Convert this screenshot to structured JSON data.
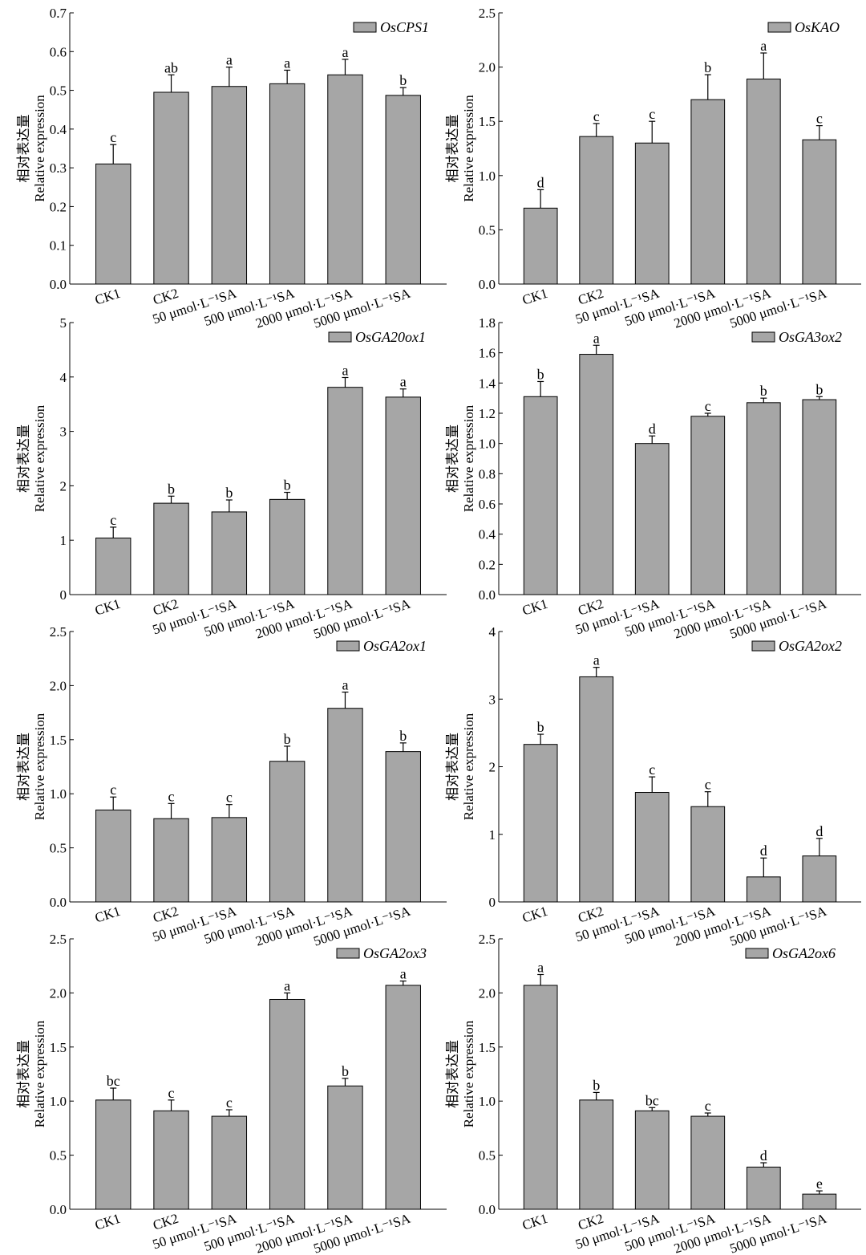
{
  "figure": {
    "categories": [
      "CK1",
      "CK2",
      "50 μmol·L⁻¹SA",
      "500 μmol·L⁻¹SA",
      "2000 μmol·L⁻¹SA",
      "5000 μmol·L⁻¹SA"
    ],
    "ylabel_cn": "相对表达量",
    "ylabel_en": "Relative expression",
    "bar_color": "#a6a6a6",
    "edge_color": "#000000"
  },
  "chart_data": [
    {
      "type": "bar",
      "legend": "OsCPS1",
      "categories": [
        "CK1",
        "CK2",
        "50 μmol·L⁻¹SA",
        "500 μmol·L⁻¹SA",
        "2000 μmol·L⁻¹SA",
        "5000 μmol·L⁻¹SA"
      ],
      "values": [
        0.31,
        0.495,
        0.51,
        0.517,
        0.54,
        0.487
      ],
      "errors": [
        0.05,
        0.045,
        0.05,
        0.035,
        0.04,
        0.02
      ],
      "sig_letters": [
        "c",
        "ab",
        "a",
        "a",
        "a",
        "b"
      ],
      "ylim": [
        0,
        0.7
      ],
      "yticks": [
        "0.0",
        "0.1",
        "0.2",
        "0.3",
        "0.4",
        "0.5",
        "0.6",
        "0.7"
      ],
      "ylabel": "相对表达量 Relative expression"
    },
    {
      "type": "bar",
      "legend": "OsKAO",
      "categories": [
        "CK1",
        "CK2",
        "50 μmol·L⁻¹SA",
        "500 μmol·L⁻¹SA",
        "2000 μmol·L⁻¹SA",
        "5000 μmol·L⁻¹SA"
      ],
      "values": [
        0.7,
        1.36,
        1.3,
        1.7,
        1.89,
        1.33
      ],
      "errors": [
        0.17,
        0.12,
        0.2,
        0.23,
        0.24,
        0.13
      ],
      "sig_letters": [
        "d",
        "c",
        "c",
        "b",
        "a",
        "c"
      ],
      "ylim": [
        0,
        2.5
      ],
      "yticks": [
        "0.0",
        "0.5",
        "1.0",
        "1.5",
        "2.0",
        "2.5"
      ],
      "ylabel": "相对表达量 Relative expression"
    },
    {
      "type": "bar",
      "legend": "OsGA20ox1",
      "categories": [
        "CK1",
        "CK2",
        "50 μmol·L⁻¹SA",
        "500 μmol·L⁻¹SA",
        "2000 μmol·L⁻¹SA",
        "5000 μmol·L⁻¹SA"
      ],
      "values": [
        1.04,
        1.68,
        1.52,
        1.75,
        3.81,
        3.63
      ],
      "errors": [
        0.2,
        0.13,
        0.22,
        0.13,
        0.18,
        0.15
      ],
      "sig_letters": [
        "c",
        "b",
        "b",
        "b",
        "a",
        "a"
      ],
      "ylim": [
        0,
        5
      ],
      "yticks": [
        "0",
        "1",
        "2",
        "3",
        "4",
        "5"
      ],
      "ylabel": "相对表达量 Relative expression"
    },
    {
      "type": "bar",
      "legend": "OsGA3ox2",
      "categories": [
        "CK1",
        "CK2",
        "50 μmol·L⁻¹SA",
        "500 μmol·L⁻¹SA",
        "2000 μmol·L⁻¹SA",
        "5000 μmol·L⁻¹SA"
      ],
      "values": [
        1.31,
        1.59,
        1.0,
        1.18,
        1.27,
        1.29
      ],
      "errors": [
        0.1,
        0.06,
        0.05,
        0.02,
        0.03,
        0.02
      ],
      "sig_letters": [
        "b",
        "a",
        "d",
        "c",
        "b",
        "b"
      ],
      "ylim": [
        0,
        1.8
      ],
      "yticks": [
        "0.0",
        "0.2",
        "0.4",
        "0.6",
        "0.8",
        "1.0",
        "1.2",
        "1.4",
        "1.6",
        "1.8"
      ],
      "ylabel": "相对表达量 Relative expression"
    },
    {
      "type": "bar",
      "legend": "OsGA2ox1",
      "categories": [
        "CK1",
        "CK2",
        "50 μmol·L⁻¹SA",
        "500 μmol·L⁻¹SA",
        "2000 μmol·L⁻¹SA",
        "5000 μmol·L⁻¹SA"
      ],
      "values": [
        0.85,
        0.77,
        0.78,
        1.3,
        1.79,
        1.39
      ],
      "errors": [
        0.12,
        0.14,
        0.12,
        0.14,
        0.15,
        0.08
      ],
      "sig_letters": [
        "c",
        "c",
        "c",
        "b",
        "a",
        "b"
      ],
      "ylim": [
        0,
        2.5
      ],
      "yticks": [
        "0.0",
        "0.5",
        "1.0",
        "1.5",
        "2.0",
        "2.5"
      ],
      "ylabel": "相对表达量 Relative expression"
    },
    {
      "type": "bar",
      "legend": "OsGA2ox2",
      "categories": [
        "CK1",
        "CK2",
        "50 μmol·L⁻¹SA",
        "500 μmol·L⁻¹SA",
        "2000 μmol·L⁻¹SA",
        "5000 μmol·L⁻¹SA"
      ],
      "values": [
        2.33,
        3.33,
        1.62,
        1.41,
        0.37,
        0.68
      ],
      "errors": [
        0.15,
        0.14,
        0.23,
        0.22,
        0.28,
        0.26
      ],
      "sig_letters": [
        "b",
        "a",
        "c",
        "c",
        "d",
        "d"
      ],
      "ylim": [
        0,
        4
      ],
      "yticks": [
        "0",
        "1",
        "2",
        "3",
        "4"
      ],
      "ylabel": "相对表达量 Relative expression"
    },
    {
      "type": "bar",
      "legend": "OsGA2ox3",
      "categories": [
        "CK1",
        "CK2",
        "50 μmol·L⁻¹SA",
        "500 μmol·L⁻¹SA",
        "2000 μmol·L⁻¹SA",
        "5000 μmol·L⁻¹SA"
      ],
      "values": [
        1.01,
        0.91,
        0.86,
        1.94,
        1.14,
        2.07
      ],
      "errors": [
        0.11,
        0.1,
        0.06,
        0.06,
        0.07,
        0.04
      ],
      "sig_letters": [
        "bc",
        "c",
        "c",
        "a",
        "b",
        "a"
      ],
      "ylim": [
        0,
        2.5
      ],
      "yticks": [
        "0.0",
        "0.5",
        "1.0",
        "1.5",
        "2.0",
        "2.5"
      ],
      "ylabel": "相对表达量 Relative expression"
    },
    {
      "type": "bar",
      "legend": "OsGA2ox6",
      "categories": [
        "CK1",
        "CK2",
        "50 μmol·L⁻¹SA",
        "500 μmol·L⁻¹SA",
        "2000 μmol·L⁻¹SA",
        "5000 μmol·L⁻¹SA"
      ],
      "values": [
        2.07,
        1.01,
        0.91,
        0.86,
        0.39,
        0.14
      ],
      "errors": [
        0.1,
        0.07,
        0.03,
        0.03,
        0.04,
        0.03
      ],
      "sig_letters": [
        "a",
        "b",
        "bc",
        "c",
        "d",
        "e"
      ],
      "ylim": [
        0,
        2.5
      ],
      "yticks": [
        "0.0",
        "0.5",
        "1.0",
        "1.5",
        "2.0",
        "2.5"
      ],
      "ylabel": "相对表达量 Relative expression"
    }
  ]
}
